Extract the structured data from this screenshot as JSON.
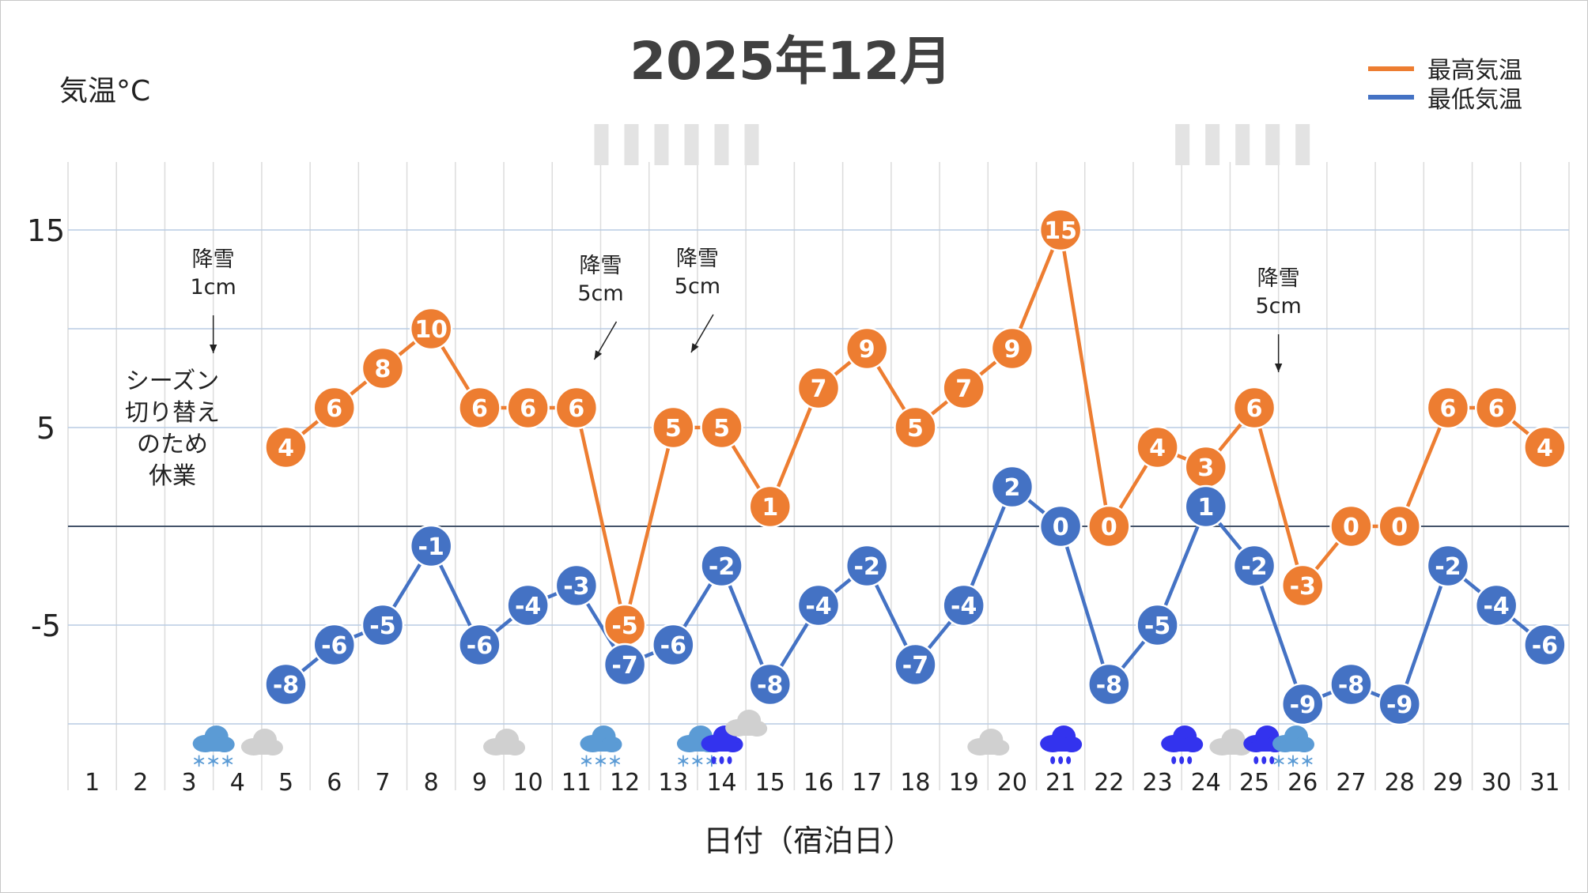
{
  "chart_data": {
    "type": "line",
    "title": "2025年12月",
    "ylabel": "気温°C",
    "xlabel": "日付（宿泊日）",
    "ylim": [
      -10,
      18
    ],
    "yticks": [
      -5,
      5,
      15
    ],
    "grid": true,
    "legend_position": "top-right",
    "categories": [
      "1",
      "2",
      "3",
      "4",
      "5",
      "6",
      "7",
      "8",
      "9",
      "10",
      "11",
      "12",
      "13",
      "14",
      "15",
      "16",
      "17",
      "18",
      "19",
      "20",
      "21",
      "22",
      "23",
      "24",
      "25",
      "26",
      "27",
      "28",
      "29",
      "30",
      "31"
    ],
    "series": [
      {
        "name": "最高気温",
        "color": "#ED7D31",
        "values": [
          null,
          null,
          null,
          null,
          4,
          6,
          8,
          10,
          6,
          6,
          6,
          -5,
          5,
          5,
          1,
          7,
          9,
          5,
          7,
          9,
          15,
          0,
          4,
          3,
          6,
          -3,
          0,
          0,
          6,
          6,
          4
        ]
      },
      {
        "name": "最低気温",
        "color": "#4472C4",
        "values": [
          null,
          null,
          null,
          null,
          -8,
          -6,
          -5,
          -1,
          -6,
          -4,
          -3,
          -7,
          -6,
          -2,
          -8,
          -4,
          -2,
          -7,
          -4,
          2,
          0,
          -8,
          -5,
          1,
          -2,
          -9,
          -8,
          -9,
          -2,
          -4,
          -6
        ]
      }
    ],
    "annotations": [
      {
        "lines": [
          "降雪",
          "1cm"
        ],
        "day": 3.5,
        "arrow": "down"
      },
      {
        "lines": [
          "降雪",
          "5cm"
        ],
        "day": 11.5,
        "arrow": "down-left"
      },
      {
        "lines": [
          "降雪",
          "5cm"
        ],
        "day": 13.5,
        "arrow": "down-left"
      },
      {
        "lines": [
          "降雪",
          "5cm"
        ],
        "day": 25.5,
        "arrow": "down"
      }
    ],
    "closed_note": [
      "シーズン",
      "切り替え",
      "のため",
      "休業"
    ],
    "weather_icons": [
      {
        "day": 3.5,
        "type": "snow"
      },
      {
        "day": 4.5,
        "type": "cloud"
      },
      {
        "day": 9.5,
        "type": "cloud"
      },
      {
        "day": 11.5,
        "type": "snow"
      },
      {
        "day": 13.5,
        "type": "snow"
      },
      {
        "day": 14,
        "type": "rain"
      },
      {
        "day": 14.5,
        "type": "cloud-high"
      },
      {
        "day": 19.5,
        "type": "cloud"
      },
      {
        "day": 21,
        "type": "rain"
      },
      {
        "day": 23.5,
        "type": "rain"
      },
      {
        "day": 24.5,
        "type": "cloud"
      },
      {
        "day": 25.2,
        "type": "rain"
      },
      {
        "day": 25.8,
        "type": "snow"
      }
    ],
    "top_marks": [
      {
        "from_day": 11.5,
        "to_day": 15
      },
      {
        "from_day": 23.5,
        "to_day": 26
      }
    ]
  },
  "colors": {
    "max_temp": "#ED7D31",
    "min_temp": "#4472C4",
    "snow_icon": "#5B9BD5",
    "rain_icon": "#3333EE",
    "cloud_icon": "#D0D0D0",
    "gridline": "#b8cce4",
    "zero_line": "#44546A"
  }
}
